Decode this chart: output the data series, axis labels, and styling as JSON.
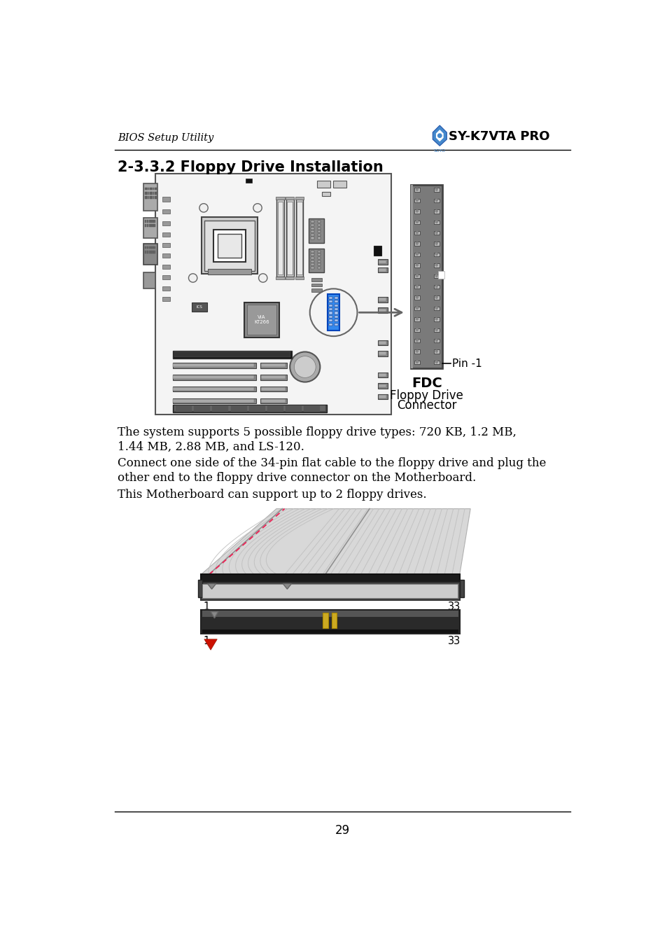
{
  "header_left": "BIOS Setup Utility",
  "header_right": "SY-K7VTA PRO",
  "title": "2-3.3.2 Floppy Drive Installation",
  "body_text_1a": "The system supports 5 possible floppy drive types: 720 KB, 1.2 MB,",
  "body_text_1b": "1.44 MB, 2.88 MB, and LS-120.",
  "body_text_2a": "Connect one side of the 34-pin flat cable to the floppy drive and plug the",
  "body_text_2b": "other end to the floppy drive connector on the Motherboard.",
  "body_text_3": "This Motherboard can support up to 2 floppy drives.",
  "fdc_label": "FDC",
  "floppy_connector_label1": "Floppy Drive",
  "floppy_connector_label2": "Connector",
  "pin1_label": "Pin -1",
  "page_number": "29",
  "bg_color": "#ffffff",
  "text_color": "#000000",
  "mb_bg": "#f8f8f8",
  "mb_border": "#555555",
  "fdc_detail_color": "#777777",
  "fdc_detail_border": "#444444"
}
